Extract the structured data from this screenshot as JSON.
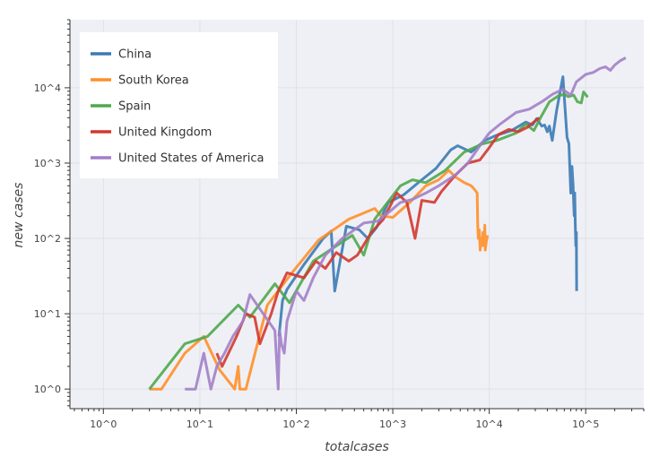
{
  "chart_data": {
    "type": "line",
    "title": "",
    "xlabel": "totalcases",
    "ylabel": "new cases",
    "xscale": "log",
    "yscale": "log",
    "xlim": [
      0.45,
      400000
    ],
    "ylim": [
      0.55,
      80000
    ],
    "xticks": [
      {
        "value": 1,
        "label": "10^0"
      },
      {
        "value": 10,
        "label": "10^1"
      },
      {
        "value": 100,
        "label": "10^2"
      },
      {
        "value": 1000,
        "label": "10^3"
      },
      {
        "value": 10000,
        "label": "10^4"
      },
      {
        "value": 100000,
        "label": "10^5"
      }
    ],
    "yticks": [
      {
        "value": 1,
        "label": "10^0"
      },
      {
        "value": 10,
        "label": "10^1"
      },
      {
        "value": 100,
        "label": "10^2"
      },
      {
        "value": 1000,
        "label": "10^3"
      },
      {
        "value": 10000,
        "label": "10^4"
      }
    ],
    "grid": true,
    "legend": "top-left",
    "series": [
      {
        "name": "China",
        "color": "#3a7ab6",
        "points": [
          [
            66,
            5
          ],
          [
            72,
            15
          ],
          [
            80,
            21
          ],
          [
            120,
            45
          ],
          [
            190,
            100
          ],
          [
            230,
            125
          ],
          [
            250,
            20
          ],
          [
            330,
            145
          ],
          [
            450,
            130
          ],
          [
            550,
            100
          ],
          [
            680,
            140
          ],
          [
            900,
            300
          ],
          [
            1300,
            380
          ],
          [
            2000,
            600
          ],
          [
            2800,
            850
          ],
          [
            4000,
            1500
          ],
          [
            4700,
            1700
          ],
          [
            5800,
            1500
          ],
          [
            6500,
            1400
          ],
          [
            9000,
            2000
          ],
          [
            11500,
            2300
          ],
          [
            17000,
            2700
          ],
          [
            24000,
            3500
          ],
          [
            28000,
            3200
          ],
          [
            31000,
            3900
          ],
          [
            35000,
            3100
          ],
          [
            37500,
            3200
          ],
          [
            40000,
            2600
          ],
          [
            42000,
            3100
          ],
          [
            45000,
            2000
          ],
          [
            50000,
            5000
          ],
          [
            58000,
            14000
          ],
          [
            62000,
            4000
          ],
          [
            64000,
            2200
          ],
          [
            67000,
            1800
          ],
          [
            70000,
            400
          ],
          [
            72000,
            900
          ],
          [
            74000,
            500
          ],
          [
            75000,
            300
          ],
          [
            76000,
            200
          ],
          [
            77000,
            400
          ],
          [
            78000,
            150
          ],
          [
            79000,
            80
          ],
          [
            80000,
            120
          ],
          [
            80500,
            20
          ]
        ]
      },
      {
        "name": "South Korea",
        "color": "#ff8f2a",
        "points": [
          [
            3,
            1
          ],
          [
            4,
            1
          ],
          [
            7,
            3
          ],
          [
            11,
            5
          ],
          [
            16,
            1.8
          ],
          [
            23,
            1
          ],
          [
            25,
            2
          ],
          [
            26,
            1
          ],
          [
            28,
            1
          ],
          [
            30,
            1
          ],
          [
            50,
            13
          ],
          [
            90,
            35
          ],
          [
            170,
            95
          ],
          [
            350,
            180
          ],
          [
            650,
            250
          ],
          [
            750,
            200
          ],
          [
            1000,
            190
          ],
          [
            1500,
            300
          ],
          [
            2200,
            500
          ],
          [
            3000,
            600
          ],
          [
            3800,
            800
          ],
          [
            4500,
            650
          ],
          [
            5500,
            550
          ],
          [
            6500,
            500
          ],
          [
            7000,
            450
          ],
          [
            7500,
            400
          ],
          [
            7600,
            150
          ],
          [
            7700,
            100
          ],
          [
            7900,
            130
          ],
          [
            8050,
            70
          ],
          [
            8200,
            100
          ],
          [
            8400,
            80
          ],
          [
            8600,
            120
          ],
          [
            8800,
            80
          ],
          [
            9000,
            150
          ],
          [
            9100,
            70
          ],
          [
            9300,
            90
          ],
          [
            9600,
            110
          ]
        ]
      },
      {
        "name": "Spain",
        "color": "#4ea94e",
        "points": [
          [
            3,
            1
          ],
          [
            7,
            4
          ],
          [
            12,
            5
          ],
          [
            25,
            13
          ],
          [
            33,
            9
          ],
          [
            60,
            25
          ],
          [
            85,
            14
          ],
          [
            150,
            50
          ],
          [
            380,
            110
          ],
          [
            500,
            60
          ],
          [
            650,
            180
          ],
          [
            1200,
            500
          ],
          [
            1600,
            600
          ],
          [
            2200,
            550
          ],
          [
            3500,
            800
          ],
          [
            5500,
            1400
          ],
          [
            8500,
            1800
          ],
          [
            12000,
            2000
          ],
          [
            19000,
            2500
          ],
          [
            24000,
            3300
          ],
          [
            29000,
            2700
          ],
          [
            34000,
            4000
          ],
          [
            42000,
            6500
          ],
          [
            52000,
            7800
          ],
          [
            60000,
            8200
          ],
          [
            66000,
            7600
          ],
          [
            75000,
            8000
          ],
          [
            82000,
            6500
          ],
          [
            90000,
            6300
          ],
          [
            95000,
            8800
          ],
          [
            105000,
            7500
          ]
        ]
      },
      {
        "name": "United Kingdom",
        "color": "#d2382f",
        "points": [
          [
            15,
            3
          ],
          [
            17,
            2
          ],
          [
            24,
            5
          ],
          [
            30,
            10
          ],
          [
            37,
            9
          ],
          [
            42,
            4
          ],
          [
            55,
            10
          ],
          [
            65,
            20
          ],
          [
            80,
            35
          ],
          [
            120,
            30
          ],
          [
            160,
            50
          ],
          [
            200,
            40
          ],
          [
            260,
            65
          ],
          [
            350,
            50
          ],
          [
            430,
            60
          ],
          [
            600,
            120
          ],
          [
            800,
            180
          ],
          [
            1100,
            400
          ],
          [
            1400,
            300
          ],
          [
            1700,
            100
          ],
          [
            2000,
            320
          ],
          [
            2700,
            300
          ],
          [
            3200,
            420
          ],
          [
            4500,
            700
          ],
          [
            6000,
            1000
          ],
          [
            8000,
            1100
          ],
          [
            10000,
            1600
          ],
          [
            12500,
            2400
          ],
          [
            16000,
            2800
          ],
          [
            20000,
            2600
          ],
          [
            25000,
            3000
          ],
          [
            29000,
            3500
          ],
          [
            33000,
            4000
          ]
        ]
      },
      {
        "name": "United States of America",
        "color": "#a27fc8",
        "points": [
          [
            7,
            1
          ],
          [
            9,
            1
          ],
          [
            11,
            3
          ],
          [
            13,
            1
          ],
          [
            15,
            2
          ],
          [
            18,
            3
          ],
          [
            22,
            5
          ],
          [
            28,
            8
          ],
          [
            33,
            18
          ],
          [
            60,
            6
          ],
          [
            65,
            1
          ],
          [
            67,
            6
          ],
          [
            70,
            4
          ],
          [
            75,
            3
          ],
          [
            80,
            8
          ],
          [
            100,
            20
          ],
          [
            120,
            15
          ],
          [
            150,
            30
          ],
          [
            200,
            60
          ],
          [
            300,
            100
          ],
          [
            500,
            160
          ],
          [
            700,
            170
          ],
          [
            900,
            220
          ],
          [
            1200,
            300
          ],
          [
            1600,
            330
          ],
          [
            2200,
            400
          ],
          [
            3000,
            500
          ],
          [
            4500,
            700
          ],
          [
            6000,
            1000
          ],
          [
            8000,
            1700
          ],
          [
            10000,
            2500
          ],
          [
            13000,
            3300
          ],
          [
            19000,
            4700
          ],
          [
            26000,
            5200
          ],
          [
            35000,
            6500
          ],
          [
            46000,
            8300
          ],
          [
            58000,
            9500
          ],
          [
            70000,
            8000
          ],
          [
            80000,
            12000
          ],
          [
            100000,
            15000
          ],
          [
            120000,
            16000
          ],
          [
            140000,
            18000
          ],
          [
            160000,
            19000
          ],
          [
            180000,
            17000
          ],
          [
            200000,
            20000
          ],
          [
            230000,
            23000
          ],
          [
            260000,
            25000
          ]
        ]
      }
    ]
  }
}
